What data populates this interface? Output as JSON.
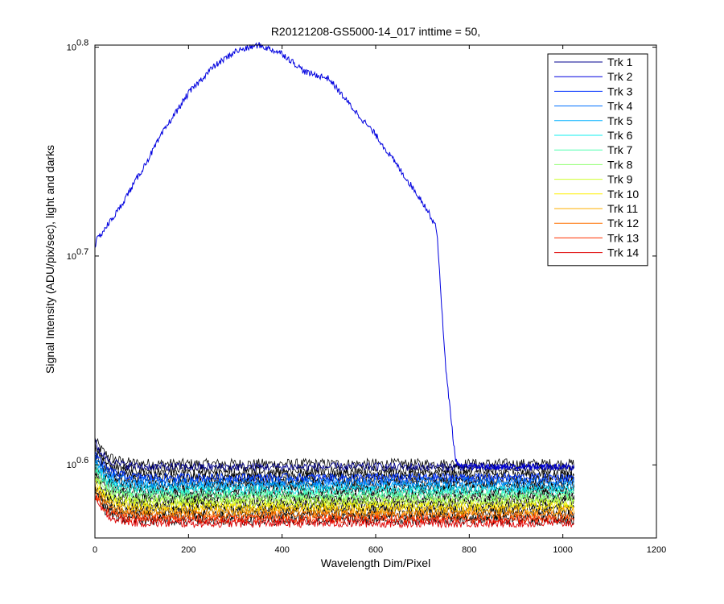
{
  "chart_data": {
    "type": "line",
    "title": "R20121208-GS5000-14_017 inttime = 50,",
    "xlabel": "Wavelength Dim/Pixel",
    "ylabel": "Signal Intensity (ADU/pix/sec), light and darks",
    "xlim": [
      0,
      1200
    ],
    "x_ticks": [
      "0",
      "200",
      "400",
      "600",
      "800",
      "1000",
      "1200"
    ],
    "x_tick_values": [
      0,
      200,
      400,
      600,
      800,
      1000,
      1200
    ],
    "y_scale": "log",
    "ylim_exponent": [
      0.565,
      0.801
    ],
    "y_tick_values": [
      0.6,
      0.7,
      0.8
    ],
    "y_ticks": [
      {
        "base": "10",
        "exp": "0.6"
      },
      {
        "base": "10",
        "exp": "0.7"
      },
      {
        "base": "10",
        "exp": "0.8"
      }
    ],
    "legend_position": "top-right",
    "series": [
      {
        "name": "Trk 1",
        "color": "#00008f"
      },
      {
        "name": "Trk 2",
        "color": "#0000df"
      },
      {
        "name": "Trk 3",
        "color": "#0030ff"
      },
      {
        "name": "Trk 4",
        "color": "#0070ff"
      },
      {
        "name": "Trk 5",
        "color": "#00b0ff"
      },
      {
        "name": "Trk 6",
        "color": "#10efef"
      },
      {
        "name": "Trk 7",
        "color": "#50ffaf"
      },
      {
        "name": "Trk 8",
        "color": "#8fff70"
      },
      {
        "name": "Trk 9",
        "color": "#cfff30"
      },
      {
        "name": "Trk 10",
        "color": "#ffef00"
      },
      {
        "name": "Trk 11",
        "color": "#ffaf00"
      },
      {
        "name": "Trk 12",
        "color": "#ff7000"
      },
      {
        "name": "Trk 13",
        "color": "#ff3000"
      },
      {
        "name": "Trk 14",
        "color": "#df0000"
      }
    ],
    "light_track_profile": {
      "series": "Trk 2",
      "x": [
        0,
        5,
        50,
        100,
        150,
        200,
        250,
        300,
        350,
        400,
        450,
        500,
        550,
        600,
        650,
        700,
        730,
        740,
        750,
        760,
        770,
        780,
        1024
      ],
      "y_log10": [
        0.705,
        0.708,
        0.722,
        0.741,
        0.761,
        0.778,
        0.79,
        0.798,
        0.801,
        0.797,
        0.788,
        0.785,
        0.771,
        0.758,
        0.742,
        0.726,
        0.714,
        0.68,
        0.645,
        0.625,
        0.603,
        0.599,
        0.599
      ]
    },
    "dark_track_levels_log10": [
      0.599,
      0.596,
      0.594,
      0.592,
      0.59,
      0.588,
      0.586,
      0.584,
      0.582,
      0.58,
      0.578,
      0.576,
      0.574,
      0.572
    ],
    "dark_track_x_range": [
      0,
      1024
    ],
    "dark_track_noise_log10": 0.0025,
    "dark_track_startup_excess_log10": 0.012
  }
}
